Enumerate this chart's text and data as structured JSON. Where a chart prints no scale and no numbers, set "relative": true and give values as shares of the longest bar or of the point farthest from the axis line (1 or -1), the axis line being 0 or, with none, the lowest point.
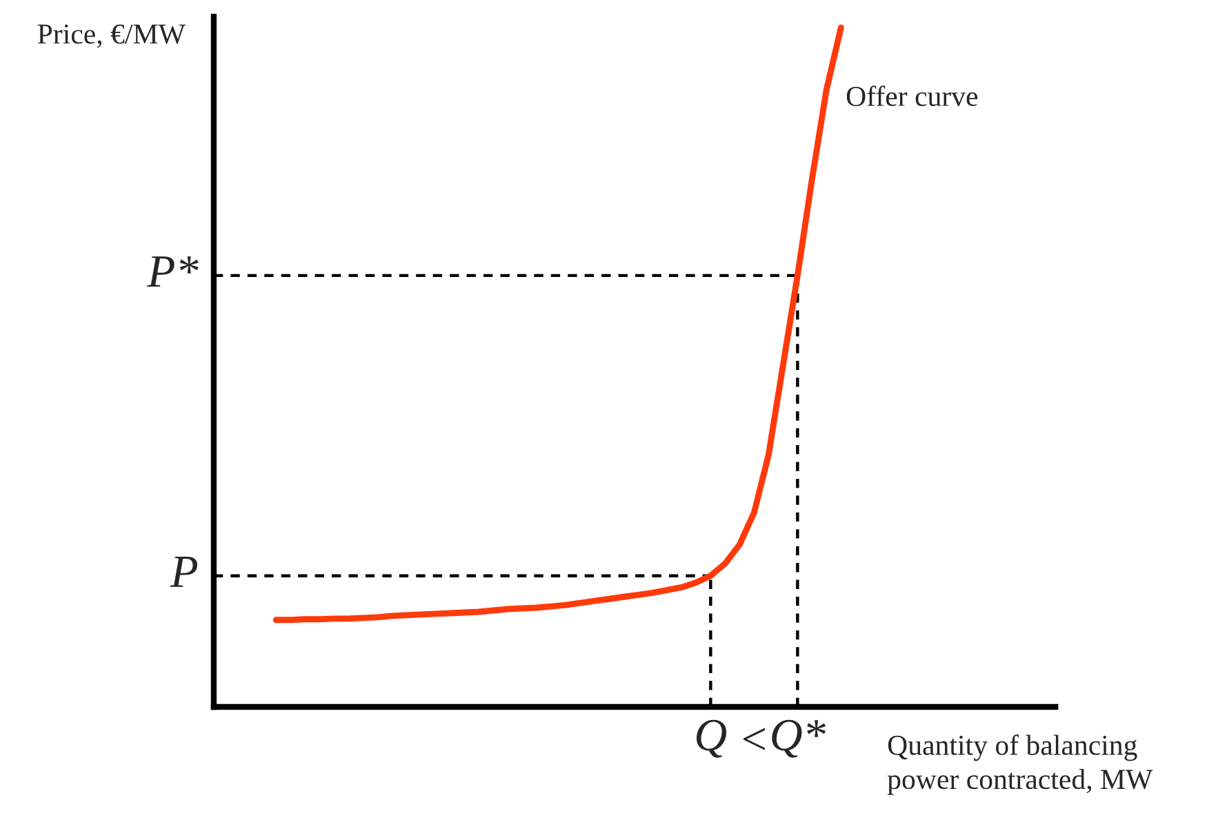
{
  "chart_data": {
    "type": "line",
    "relative": true,
    "xlabel": "Quantity of balancing\npower contracted, MW",
    "ylabel": "Price, €/MW",
    "categories": [
      null,
      null,
      null,
      null,
      null,
      null,
      null,
      null,
      null,
      null,
      null,
      null,
      null,
      null,
      null,
      null,
      null,
      null,
      null,
      null,
      null,
      null,
      null,
      null,
      null,
      null,
      null,
      null,
      null,
      null,
      "Q",
      null,
      null,
      null,
      null,
      null,
      "Q*",
      null,
      null,
      null
    ],
    "series": [
      {
        "color": "#ff3a0a",
        "values": [
          0.128,
          0.128,
          0.129,
          0.129,
          0.13,
          0.13,
          0.131,
          0.132,
          0.134,
          0.135,
          0.136,
          0.137,
          0.138,
          0.139,
          0.14,
          0.142,
          0.144,
          0.145,
          0.146,
          0.148,
          0.15,
          0.153,
          0.156,
          0.159,
          0.162,
          0.165,
          0.168,
          0.172,
          0.176,
          0.183,
          0.193,
          0.211,
          0.239,
          0.286,
          0.371,
          0.503,
          0.635,
          0.777,
          0.909,
          1.0
        ]
      }
    ],
    "annotations": [
      "<",
      "Offer curve"
    ],
    "ref_lines": [
      {
        "axis": "y",
        "value": 0.193,
        "label": "P",
        "line_style": "dashed",
        "color": "#000000"
      },
      {
        "axis": "y",
        "value": 0.635,
        "label": "P*",
        "line_style": "dashed",
        "color": "#000000"
      },
      {
        "axis": "x",
        "value": "Q",
        "line_style": "dashed",
        "color": "#000000"
      },
      {
        "axis": "x",
        "value": "Q*",
        "line_style": "dashed",
        "color": "#000000"
      }
    ],
    "legend": false,
    "marker": "none",
    "line_style": "solid"
  }
}
